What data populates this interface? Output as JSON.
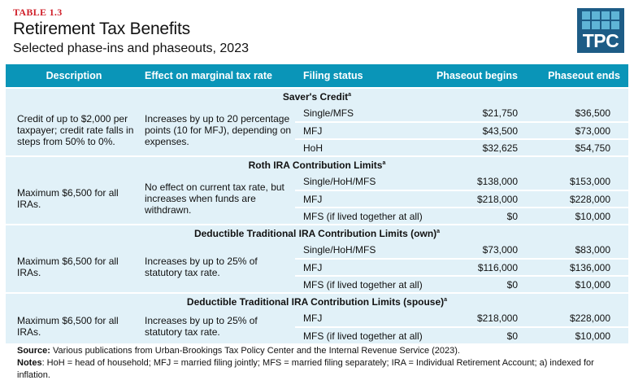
{
  "table_label": "TABLE 1.3",
  "title": "Retirement Tax Benefits",
  "subtitle": "Selected phase-ins and phaseouts, 2023",
  "logo": "TPC",
  "colors": {
    "header": "#0a95b8",
    "row_bg": "#e1f1f8",
    "label": "#d0202a",
    "logo": "#1d5c86"
  },
  "columns": [
    "Description",
    "Effect on marginal tax rate",
    "Filing status",
    "Phaseout begins",
    "Phaseout ends"
  ],
  "sections": [
    {
      "title": "Saver's Credit",
      "sup": "a",
      "description": "Credit of up to $2,000 per taxpayer; credit rate falls in steps from 50% to 0%.",
      "effect": "Increases by up to 20 percentage points (10 for MFJ), depending on expenses.",
      "rows": [
        [
          "Single/MFS",
          "$21,750",
          "$36,500"
        ],
        [
          "MFJ",
          "$43,500",
          "$73,000"
        ],
        [
          "HoH",
          "$32,625",
          "$54,750"
        ]
      ]
    },
    {
      "title": "Roth IRA Contribution Limits",
      "sup": "a",
      "description": "Maximum $6,500 for all IRAs.",
      "effect": "No effect on current tax rate, but increases when funds are withdrawn.",
      "rows": [
        [
          "Single/HoH/MFS",
          "$138,000",
          "$153,000"
        ],
        [
          "MFJ",
          "$218,000",
          "$228,000"
        ],
        [
          "MFS (if lived together at all)",
          "$0",
          "$10,000"
        ]
      ]
    },
    {
      "title": "Deductible Traditional IRA Contribution Limits (own)",
      "sup": "a",
      "description": "Maximum $6,500 for all IRAs.",
      "effect": "Increases by up to 25% of statutory tax rate.",
      "rows": [
        [
          "Single/HoH/MFS",
          "$73,000",
          "$83,000"
        ],
        [
          "MFJ",
          "$116,000",
          "$136,000"
        ],
        [
          "MFS (if lived together at all)",
          "$0",
          "$10,000"
        ]
      ]
    },
    {
      "title": "Deductible Traditional IRA Contribution Limits (spouse)",
      "sup": "a",
      "description": "Maximum $6,500 for all IRAs.",
      "effect": "Increases by up to 25% of statutory tax rate.",
      "rows": [
        [
          "MFJ",
          "$218,000",
          "$228,000"
        ],
        [
          "MFS (if lived together at all)",
          "$0",
          "$10,000"
        ]
      ]
    }
  ],
  "source_label": "Source:",
  "source": "Various publications from Urban-Brookings Tax Policy Center and the Internal Revenue Service (2023).",
  "notes_label": "Notes",
  "notes": ": HoH = head of household; MFJ = married filing jointly; MFS = married filing separately; IRA = Individual Retirement Account; a) indexed for inflation."
}
